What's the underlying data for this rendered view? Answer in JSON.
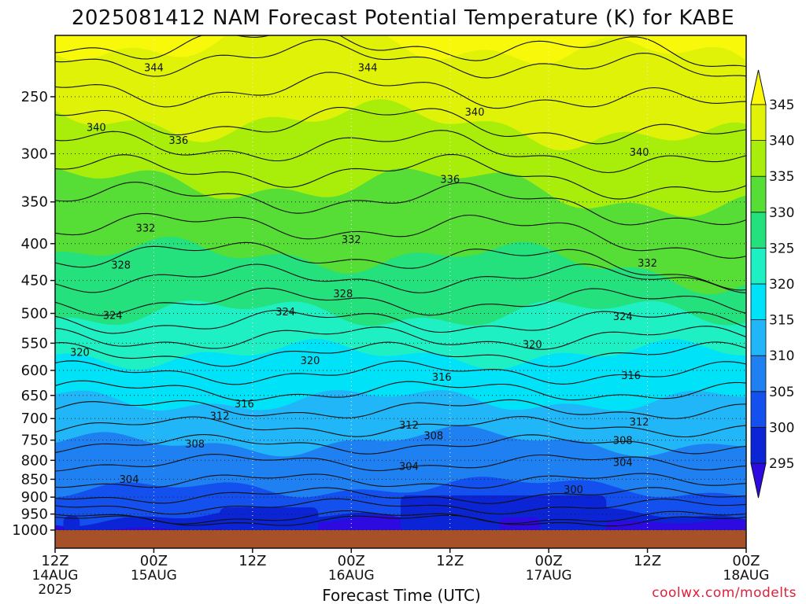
{
  "chart_data": {
    "type": "heatmap",
    "title": "2025081412 NAM Forecast Potential Temperature (K) for KABE",
    "xlabel": "Forecast Time (UTC)",
    "ylabel": "",
    "credit": "coolwx.com/modelts",
    "units": "K",
    "y_scale": "log-pressure",
    "ylim": [
      1000,
      200
    ],
    "grid": true,
    "x_ticks": [
      {
        "label": "12Z",
        "date": "14AUG",
        "year": "2025"
      },
      {
        "label": "00Z",
        "date": "15AUG",
        "year": ""
      },
      {
        "label": "12Z",
        "date": "",
        "year": ""
      },
      {
        "label": "00Z",
        "date": "16AUG",
        "year": ""
      },
      {
        "label": "12Z",
        "date": "",
        "year": ""
      },
      {
        "label": "00Z",
        "date": "17AUG",
        "year": ""
      },
      {
        "label": "12Z",
        "date": "",
        "year": ""
      },
      {
        "label": "00Z",
        "date": "18AUG",
        "year": ""
      }
    ],
    "y_ticks": [
      250,
      300,
      350,
      400,
      450,
      500,
      550,
      600,
      650,
      700,
      750,
      800,
      850,
      900,
      950,
      1000
    ],
    "colorbar": {
      "levels": [
        295,
        300,
        305,
        310,
        315,
        320,
        325,
        330,
        335,
        340,
        345
      ],
      "colors": [
        "#2d0be0",
        "#0a24d6",
        "#1350ee",
        "#1f80f2",
        "#20b6f7",
        "#00e2f8",
        "#1ef0c4",
        "#24e07d",
        "#56dd36",
        "#a8ee0a",
        "#dff208",
        "#fcf80a"
      ],
      "extend": "both"
    },
    "contour_labels": [
      {
        "value": "344",
        "hour": 12,
        "p": 228
      },
      {
        "value": "344",
        "hour": 38,
        "p": 228
      },
      {
        "value": "340",
        "hour": 5,
        "p": 276
      },
      {
        "value": "340",
        "hour": 51,
        "p": 263
      },
      {
        "value": "340",
        "hour": 71,
        "p": 299
      },
      {
        "value": "336",
        "hour": 15,
        "p": 288
      },
      {
        "value": "336",
        "hour": 48,
        "p": 326
      },
      {
        "value": "332",
        "hour": 11,
        "p": 381
      },
      {
        "value": "332",
        "hour": 36,
        "p": 395
      },
      {
        "value": "332",
        "hour": 72,
        "p": 426
      },
      {
        "value": "328",
        "hour": 8,
        "p": 429
      },
      {
        "value": "328",
        "hour": 35,
        "p": 470
      },
      {
        "value": "324",
        "hour": 7,
        "p": 504
      },
      {
        "value": "324",
        "hour": 28,
        "p": 498
      },
      {
        "value": "324",
        "hour": 69,
        "p": 506
      },
      {
        "value": "320",
        "hour": 3,
        "p": 567
      },
      {
        "value": "320",
        "hour": 31,
        "p": 582
      },
      {
        "value": "320",
        "hour": 58,
        "p": 553
      },
      {
        "value": "316",
        "hour": 23,
        "p": 669
      },
      {
        "value": "316",
        "hour": 47,
        "p": 614
      },
      {
        "value": "316",
        "hour": 70,
        "p": 611
      },
      {
        "value": "312",
        "hour": 20,
        "p": 695
      },
      {
        "value": "312",
        "hour": 43,
        "p": 716
      },
      {
        "value": "312",
        "hour": 71,
        "p": 708
      },
      {
        "value": "308",
        "hour": 17,
        "p": 760
      },
      {
        "value": "308",
        "hour": 46,
        "p": 740
      },
      {
        "value": "308",
        "hour": 69,
        "p": 752
      },
      {
        "value": "304",
        "hour": 9,
        "p": 851
      },
      {
        "value": "304",
        "hour": 43,
        "p": 817
      },
      {
        "value": "304",
        "hour": 69,
        "p": 806
      },
      {
        "value": "300",
        "hour": 63,
        "p": 880
      }
    ]
  }
}
